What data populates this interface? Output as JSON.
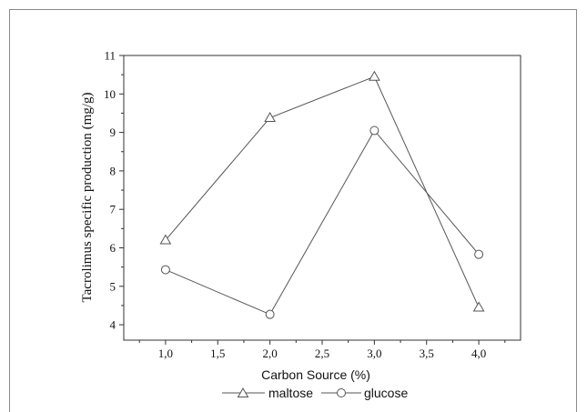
{
  "chart_data": {
    "type": "line",
    "xlabel": "Carbon Source (%)",
    "ylabel": "Tacrolimus specific production (mg/g)",
    "xlim": [
      0.6,
      4.4
    ],
    "ylim": [
      3.6,
      11
    ],
    "xticks": [
      "1,0",
      "1,5",
      "2,0",
      "2,5",
      "3,0",
      "3,5",
      "4,0"
    ],
    "xtick_values": [
      1.0,
      1.5,
      2.0,
      2.5,
      3.0,
      3.5,
      4.0
    ],
    "yticks": [
      "4",
      "5",
      "6",
      "7",
      "8",
      "9",
      "10",
      "11"
    ],
    "ytick_values": [
      4,
      5,
      6,
      7,
      8,
      9,
      10,
      11
    ],
    "x": [
      1.0,
      2.0,
      3.0,
      4.0
    ],
    "series": [
      {
        "name": "maltose",
        "marker": "triangle",
        "values": [
          6.2,
          9.38,
          10.45,
          4.45
        ]
      },
      {
        "name": "glucose",
        "marker": "circle",
        "values": [
          5.43,
          4.27,
          9.05,
          5.83
        ]
      }
    ],
    "grid": false,
    "legend_position": "bottom-center"
  }
}
